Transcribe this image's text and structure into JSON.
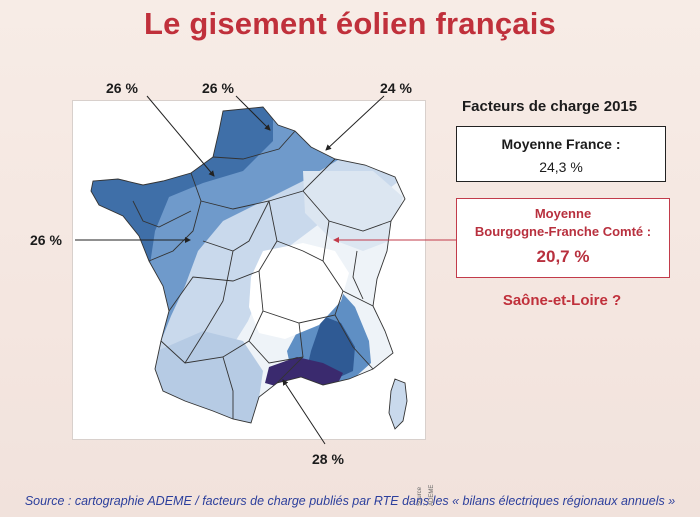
{
  "title": "Le gisement éolien français",
  "map": {
    "credit": "Source : ADEME",
    "labels": {
      "north_west": "26 %",
      "north": "26 %",
      "north_east": "24 %",
      "west": "26 %",
      "south": "28 %"
    }
  },
  "panel": {
    "heading": "Facteurs de charge 2015",
    "france": {
      "label": "Moyenne France :",
      "value": "24,3 %"
    },
    "bfc": {
      "label_line1": "Moyenne",
      "label_line2": "Bourgogne-Franche Comté :",
      "value": "20,7 %"
    },
    "question": "Saône-et-Loire ?"
  },
  "source": "Source : cartographie ADEME / facteurs de charge publiés par RTE dans les « bilans électriques régionaux annuels »",
  "colors": {
    "title": "#c0303b",
    "zone_28": "#3a2a6e",
    "zone_26": "#3f6fa8",
    "zone_25": "#5f8fc4",
    "zone_24": "#a9c2de",
    "zone_22": "#dce6f1",
    "zone_low": "#ffffff",
    "source_text": "#2c3f9c"
  }
}
